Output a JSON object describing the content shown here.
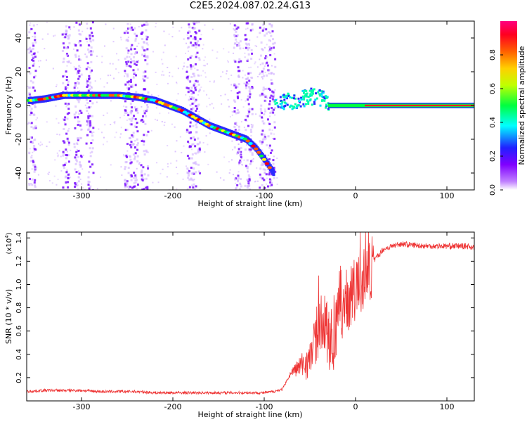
{
  "title": "C2E5.2024.087.02.24.G13",
  "chart_data": [
    {
      "type": "heatmap",
      "xlabel": "Height of straight line (km)",
      "ylabel": "Frequency (Hz)",
      "xlim": [
        -360,
        130
      ],
      "ylim": [
        -50,
        50
      ],
      "xticks": [
        -300,
        -200,
        -100,
        0,
        100
      ],
      "yticks": [
        -40,
        -20,
        0,
        20,
        40
      ],
      "colorbar": {
        "label": "Normalized spectral amplitude",
        "range": [
          0.0,
          1.0
        ],
        "ticks": [
          0.0,
          0.2,
          0.4,
          0.6,
          0.8
        ],
        "colormap": [
          "#ffffff",
          "#8000ff",
          "#0000ff",
          "#00ffff",
          "#00ff00",
          "#ffff00",
          "#ff8000",
          "#ff0000",
          "#ff0080"
        ]
      },
      "ridge": {
        "x": [
          -355,
          -340,
          -320,
          -300,
          -280,
          -260,
          -240,
          -230,
          -220,
          -210,
          -200,
          -190,
          -180,
          -170,
          -160,
          -150,
          -140,
          -130,
          -120,
          -110,
          -100,
          -95,
          -90
        ],
        "y": [
          3,
          4,
          6,
          6,
          6,
          6,
          5,
          4,
          3,
          1,
          -1,
          -3,
          -6,
          -9,
          -12,
          -14,
          -16,
          -18,
          -20,
          -25,
          -32,
          -36,
          -40
        ]
      },
      "tail": {
        "x": [
          -90,
          -70,
          -50,
          -40,
          -30,
          -20,
          0,
          10,
          130
        ],
        "y": [
          4,
          3,
          6,
          5,
          2,
          1,
          1,
          0,
          0
        ]
      }
    },
    {
      "type": "line",
      "xlabel": "Height of straight line (km)",
      "ylabel": "SNR (10 * v/v)",
      "scale_label_base": "(x10",
      "scale_label_exp": "4",
      "scale_label_end": ")",
      "xlim": [
        -360,
        130
      ],
      "ylim": [
        0,
        1.45
      ],
      "xticks": [
        -300,
        -200,
        -100,
        0,
        100
      ],
      "yticks": [
        0.2,
        0.4,
        0.6,
        0.8,
        1.0,
        1.2,
        1.4
      ],
      "color": "#ee3333",
      "series": [
        {
          "x": [
            -360,
            -340,
            -320,
            -300,
            -280,
            -260,
            -240,
            -220,
            -200,
            -180,
            -160,
            -140,
            -120,
            -100,
            -90,
            -80,
            -70,
            -60,
            -50,
            -45,
            -40,
            -35,
            -30,
            -25,
            -20,
            -17,
            -15,
            -10,
            -5,
            0,
            5,
            10,
            15,
            20,
            25,
            30,
            40,
            50,
            60,
            80,
            100,
            120,
            130
          ],
          "y": [
            0.08,
            0.09,
            0.09,
            0.09,
            0.08,
            0.08,
            0.08,
            0.07,
            0.07,
            0.07,
            0.07,
            0.07,
            0.07,
            0.07,
            0.08,
            0.1,
            0.25,
            0.3,
            0.35,
            0.5,
            0.6,
            0.7,
            0.55,
            0.5,
            0.65,
            0.9,
            0.8,
            0.85,
            0.9,
            0.95,
            1.0,
            1.05,
            1.1,
            1.2,
            1.25,
            1.3,
            1.33,
            1.35,
            1.34,
            1.33,
            1.33,
            1.33,
            1.32
          ]
        }
      ]
    }
  ]
}
